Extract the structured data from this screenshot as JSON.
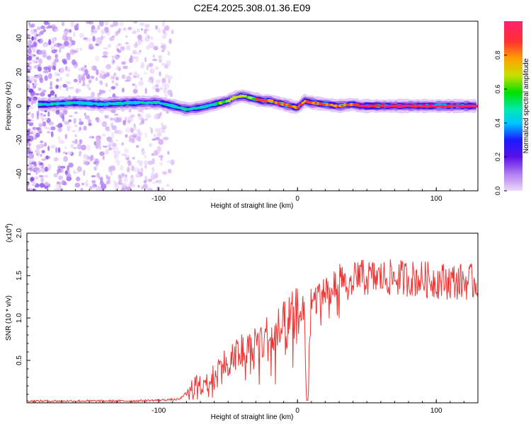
{
  "title": "C2E4.2025.308.01.36.E09",
  "chart_data": [
    {
      "type": "heatmap",
      "title": "C2E4.2025.308.01.36.E09",
      "xlabel": "Height of straight line (km)",
      "ylabel": "Frequency (Hz)",
      "xlim": [
        -195,
        130
      ],
      "ylim": [
        -50,
        50
      ],
      "xticks": [
        -100,
        0,
        100
      ],
      "xtick_labels": [
        "-100",
        "0",
        "100"
      ],
      "yticks": [
        -40,
        -20,
        0,
        20,
        40
      ],
      "ytick_labels": [
        "-40",
        "-20",
        "0",
        "20",
        "40"
      ],
      "colorbar": {
        "label": "Normalized spectral amplitude",
        "range": [
          0,
          1
        ],
        "ticks": [
          0.0,
          0.2,
          0.4,
          0.6,
          0.8
        ],
        "tick_labels": [
          "0.0",
          "0.2",
          "0.4",
          "0.6",
          "0.8"
        ],
        "colors": [
          "#e6ccf7",
          "#9a66ee",
          "#5a10e6",
          "#1a1aff",
          "#00c8ff",
          "#00e8b0",
          "#00e000",
          "#c8e000",
          "#ffa000",
          "#ff3030",
          "#ff2070"
        ]
      },
      "ridge": {
        "x": [
          -180,
          -160,
          -140,
          -120,
          -100,
          -90,
          -80,
          -70,
          -60,
          -50,
          -45,
          -40,
          -35,
          -30,
          -25,
          -20,
          -15,
          -10,
          -5,
          0,
          5,
          10,
          20,
          30,
          40,
          45,
          60,
          80,
          100,
          120,
          130
        ],
        "y": [
          1,
          2,
          1,
          2,
          2,
          0,
          -2,
          -1,
          1,
          3,
          5,
          6,
          5,
          4,
          3,
          3,
          2,
          1,
          0,
          -1,
          3,
          2,
          1,
          0,
          1,
          0,
          0,
          0,
          0,
          0,
          0
        ]
      },
      "noise_region_x": [
        -195,
        -90
      ]
    },
    {
      "type": "line",
      "xlabel": "Height of straight line (km)",
      "ylabel": "SNR (10 * v/v)",
      "y_scale_label": "(x10^4)",
      "y_scale_base": "(x10",
      "y_scale_exp": "4",
      "y_scale_close": ")",
      "xlim": [
        -195,
        130
      ],
      "ylim": [
        0,
        2.0
      ],
      "xticks": [
        -100,
        0,
        100
      ],
      "xtick_labels": [
        "-100",
        "0",
        "100"
      ],
      "yticks": [
        0.5,
        1.0,
        1.5,
        2.0
      ],
      "ytick_labels": [
        "0.5",
        "1.0",
        "1.5",
        "2.0"
      ],
      "color": "#ee3333",
      "trend": {
        "x": [
          -195,
          -120,
          -100,
          -85,
          -80,
          -60,
          -40,
          -20,
          -10,
          0,
          5,
          7,
          9,
          10,
          15,
          20,
          30,
          40,
          60,
          80,
          100,
          130
        ],
        "y": [
          0.02,
          0.02,
          0.03,
          0.04,
          0.12,
          0.35,
          0.6,
          0.75,
          0.85,
          1.0,
          1.05,
          0.05,
          0.9,
          1.2,
          1.25,
          1.3,
          1.4,
          1.45,
          1.45,
          1.45,
          1.42,
          1.4
        ]
      }
    }
  ]
}
